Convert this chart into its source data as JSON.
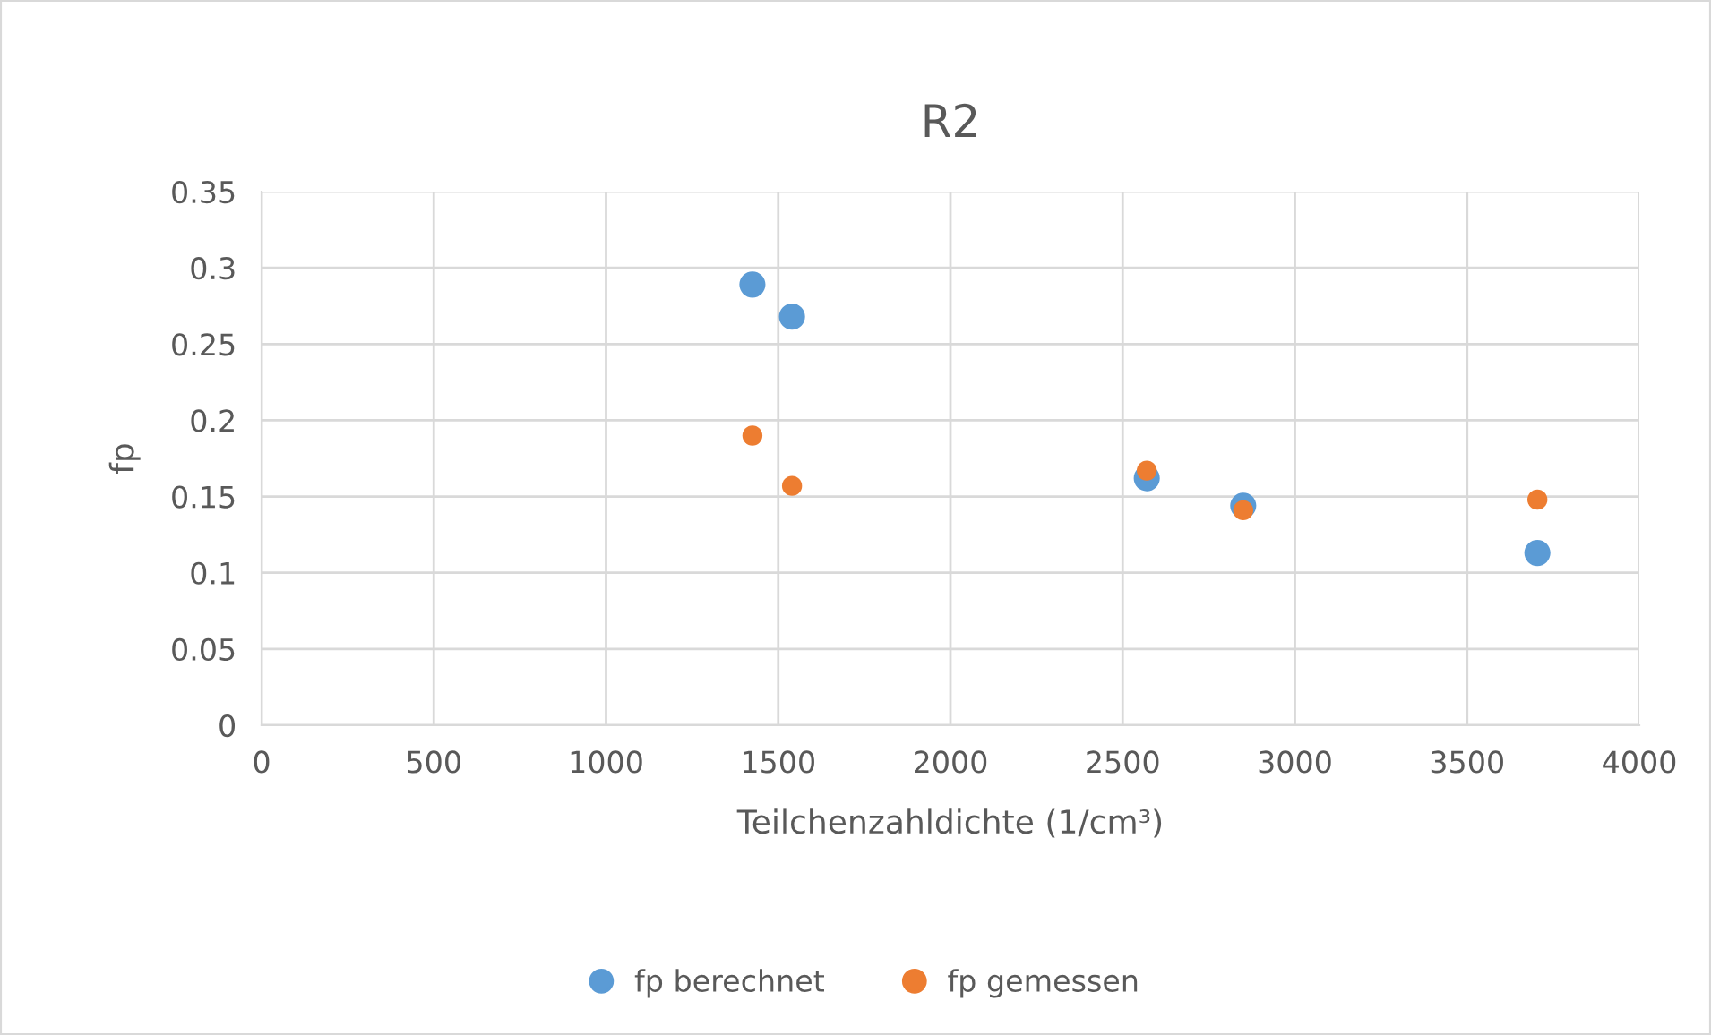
{
  "chart_data": {
    "type": "scatter",
    "title": "R2",
    "xlabel": "Teilchenzahldichte (1/cm³)",
    "ylabel": "fp",
    "xlim": [
      0,
      4000
    ],
    "xticks": [
      0,
      500,
      1000,
      1500,
      2000,
      2500,
      3000,
      3500,
      4000
    ],
    "ylim": [
      0,
      0.35
    ],
    "yticks": [
      0,
      0.05,
      0.1,
      0.15,
      0.2,
      0.25,
      0.3,
      0.35
    ],
    "grid": true,
    "legend": "bottom",
    "marker": "circle",
    "series": [
      {
        "name": "fp berechnet",
        "color": "#5b9bd5",
        "x": [
          1425,
          1540,
          2570,
          2850,
          3704
        ],
        "values": [
          0.289,
          0.268,
          0.162,
          0.144,
          0.113
        ]
      },
      {
        "name": "fp gemessen",
        "color": "#ed7d31",
        "x": [
          1425,
          1540,
          2570,
          2850,
          3704
        ],
        "values": [
          0.19,
          0.157,
          0.167,
          0.141,
          0.148
        ]
      }
    ]
  }
}
